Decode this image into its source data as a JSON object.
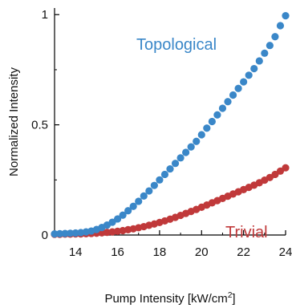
{
  "chart_data": {
    "type": "scatter",
    "xlabel": "Pump Intensity [kW/cm",
    "xlabel_superscript": "2",
    "xlabel_suffix": "]",
    "ylabel": "Normalized Intensity",
    "xlim": [
      13,
      24
    ],
    "ylim": [
      0,
      1.03
    ],
    "xticks": [
      14,
      16,
      18,
      20,
      22,
      24
    ],
    "xtick_labels": [
      "14",
      "16",
      "18",
      "20",
      "22",
      "24"
    ],
    "yticks": [
      0,
      0.5,
      1
    ],
    "ytick_labels": [
      "0",
      "0.5",
      "1"
    ],
    "grid": false,
    "series": [
      {
        "name": "Topological",
        "color": "#3a87c8",
        "x": [
          13.0,
          13.25,
          13.5,
          13.75,
          14.0,
          14.25,
          14.5,
          14.75,
          15.0,
          15.25,
          15.5,
          15.75,
          16.0,
          16.25,
          16.5,
          16.75,
          17.0,
          17.25,
          17.5,
          17.75,
          18.0,
          18.25,
          18.5,
          18.75,
          19.0,
          19.25,
          19.5,
          19.75,
          20.0,
          20.25,
          20.5,
          20.75,
          21.0,
          21.25,
          21.5,
          21.75,
          22.0,
          22.25,
          22.5,
          22.75,
          23.0,
          23.25,
          23.5,
          23.75,
          24.0
        ],
        "y": [
          0.005,
          0.006,
          0.007,
          0.008,
          0.009,
          0.011,
          0.014,
          0.018,
          0.025,
          0.034,
          0.045,
          0.058,
          0.073,
          0.09,
          0.11,
          0.13,
          0.153,
          0.177,
          0.2,
          0.225,
          0.25,
          0.275,
          0.3,
          0.325,
          0.35,
          0.375,
          0.4,
          0.425,
          0.455,
          0.485,
          0.515,
          0.545,
          0.575,
          0.605,
          0.635,
          0.665,
          0.695,
          0.725,
          0.755,
          0.79,
          0.825,
          0.86,
          0.9,
          0.95,
          0.995
        ]
      },
      {
        "name": "Trivial",
        "color": "#c0393a",
        "x": [
          13.0,
          13.25,
          13.5,
          13.75,
          14.0,
          14.25,
          14.5,
          14.75,
          15.0,
          15.25,
          15.5,
          15.75,
          16.0,
          16.25,
          16.5,
          16.75,
          17.0,
          17.25,
          17.5,
          17.75,
          18.0,
          18.25,
          18.5,
          18.75,
          19.0,
          19.25,
          19.5,
          19.75,
          20.0,
          20.25,
          20.5,
          20.75,
          21.0,
          21.25,
          21.5,
          21.75,
          22.0,
          22.25,
          22.5,
          22.75,
          23.0,
          23.25,
          23.5,
          23.75,
          24.0
        ],
        "y": [
          0.003,
          0.003,
          0.004,
          0.004,
          0.005,
          0.005,
          0.006,
          0.007,
          0.008,
          0.01,
          0.012,
          0.014,
          0.017,
          0.02,
          0.024,
          0.028,
          0.033,
          0.038,
          0.044,
          0.05,
          0.057,
          0.064,
          0.072,
          0.08,
          0.089,
          0.098,
          0.107,
          0.116,
          0.126,
          0.136,
          0.146,
          0.156,
          0.166,
          0.176,
          0.186,
          0.196,
          0.206,
          0.216,
          0.226,
          0.237,
          0.249,
          0.261,
          0.275,
          0.29,
          0.305
        ]
      }
    ]
  }
}
